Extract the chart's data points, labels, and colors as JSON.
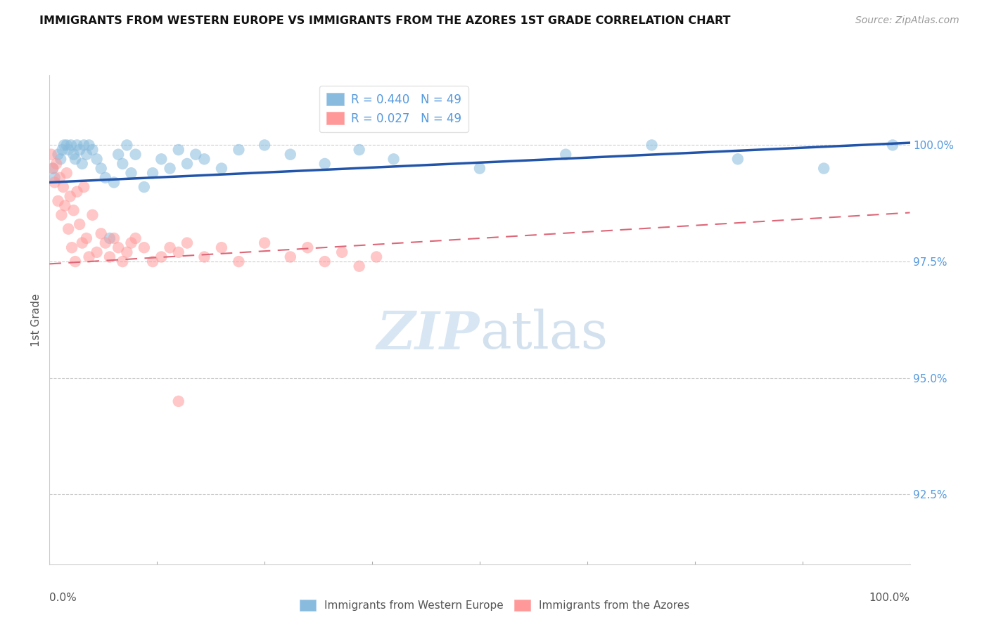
{
  "title": "IMMIGRANTS FROM WESTERN EUROPE VS IMMIGRANTS FROM THE AZORES 1ST GRADE CORRELATION CHART",
  "source": "Source: ZipAtlas.com",
  "ylabel": "1st Grade",
  "y_ticks": [
    92.5,
    95.0,
    97.5,
    100.0
  ],
  "y_tick_labels": [
    "92.5%",
    "95.0%",
    "97.5%",
    "100.0%"
  ],
  "x_min": 0.0,
  "x_max": 100.0,
  "y_min": 91.0,
  "y_max": 101.5,
  "R_blue": 0.44,
  "N_blue": 49,
  "R_pink": 0.027,
  "N_pink": 49,
  "blue_color": "#88BBDD",
  "pink_color": "#FF9999",
  "blue_line_color": "#2255AA",
  "pink_line_color": "#DD6677",
  "legend_blue_label": "Immigrants from Western Europe",
  "legend_pink_label": "Immigrants from the Azores",
  "blue_line_x0": 0.0,
  "blue_line_x1": 100.0,
  "blue_line_y0": 99.2,
  "blue_line_y1": 100.05,
  "pink_line_x0": 0.0,
  "pink_line_x1": 100.0,
  "pink_line_y0": 97.45,
  "pink_line_y1": 98.55,
  "blue_scatter_x": [
    0.4,
    0.6,
    1.0,
    1.3,
    1.5,
    1.7,
    2.0,
    2.2,
    2.5,
    2.8,
    3.0,
    3.2,
    3.5,
    3.8,
    4.0,
    4.3,
    4.6,
    5.0,
    5.5,
    6.0,
    6.5,
    7.0,
    7.5,
    8.0,
    8.5,
    9.0,
    9.5,
    10.0,
    11.0,
    12.0,
    13.0,
    14.0,
    15.0,
    16.0,
    17.0,
    18.0,
    20.0,
    22.0,
    25.0,
    28.0,
    32.0,
    36.0,
    40.0,
    50.0,
    60.0,
    70.0,
    80.0,
    90.0,
    98.0
  ],
  "blue_scatter_y": [
    99.5,
    99.3,
    99.8,
    99.7,
    99.9,
    100.0,
    100.0,
    99.9,
    100.0,
    99.8,
    99.7,
    100.0,
    99.9,
    99.6,
    100.0,
    99.8,
    100.0,
    99.9,
    99.7,
    99.5,
    99.3,
    98.0,
    99.2,
    99.8,
    99.6,
    100.0,
    99.4,
    99.8,
    99.1,
    99.4,
    99.7,
    99.5,
    99.9,
    99.6,
    99.8,
    99.7,
    99.5,
    99.9,
    100.0,
    99.8,
    99.6,
    99.9,
    99.7,
    99.5,
    99.8,
    100.0,
    99.7,
    99.5,
    100.0
  ],
  "pink_scatter_x": [
    0.2,
    0.4,
    0.6,
    0.8,
    1.0,
    1.2,
    1.4,
    1.6,
    1.8,
    2.0,
    2.2,
    2.4,
    2.6,
    2.8,
    3.0,
    3.2,
    3.5,
    3.8,
    4.0,
    4.3,
    4.6,
    5.0,
    5.5,
    6.0,
    6.5,
    7.0,
    7.5,
    8.0,
    8.5,
    9.0,
    9.5,
    10.0,
    11.0,
    12.0,
    13.0,
    14.0,
    15.0,
    16.0,
    18.0,
    20.0,
    22.0,
    25.0,
    28.0,
    30.0,
    32.0,
    34.0,
    36.0,
    38.0,
    15.0
  ],
  "pink_scatter_y": [
    99.8,
    99.5,
    99.2,
    99.6,
    98.8,
    99.3,
    98.5,
    99.1,
    98.7,
    99.4,
    98.2,
    98.9,
    97.8,
    98.6,
    97.5,
    99.0,
    98.3,
    97.9,
    99.1,
    98.0,
    97.6,
    98.5,
    97.7,
    98.1,
    97.9,
    97.6,
    98.0,
    97.8,
    97.5,
    97.7,
    97.9,
    98.0,
    97.8,
    97.5,
    97.6,
    97.8,
    97.7,
    97.9,
    97.6,
    97.8,
    97.5,
    97.9,
    97.6,
    97.8,
    97.5,
    97.7,
    97.4,
    97.6,
    94.5
  ]
}
